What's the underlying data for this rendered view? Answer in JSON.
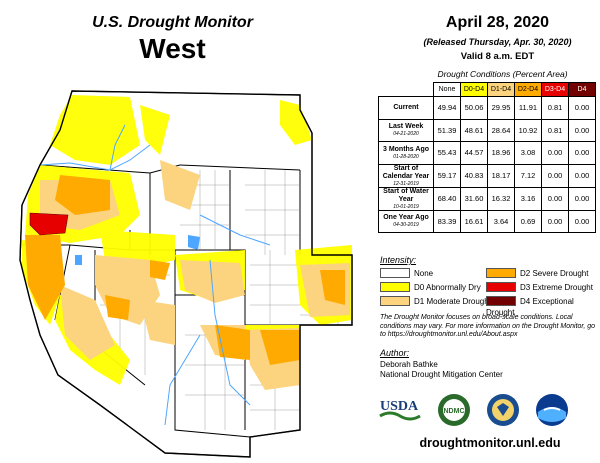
{
  "header": {
    "title": "U.S. Drought Monitor",
    "region": "West",
    "date": "April 28, 2020",
    "released": "(Released Thursday, Apr. 30, 2020)",
    "valid": "Valid 8 a.m. EDT"
  },
  "table": {
    "caption": "Drought Conditions (Percent Area)",
    "columns": [
      "None",
      "D0-D4",
      "D1-D4",
      "D2-D4",
      "D3-D4",
      "D4"
    ],
    "column_colors": [
      "#ffffff",
      "#ffff00",
      "#fcd37f",
      "#ffaa00",
      "#e60000",
      "#730000"
    ],
    "rows": [
      {
        "label": "Current",
        "date": "",
        "values": [
          "49.94",
          "50.06",
          "29.95",
          "11.91",
          "0.81",
          "0.00"
        ]
      },
      {
        "label": "Last Week",
        "date": "04-21-2020",
        "values": [
          "51.39",
          "48.61",
          "28.64",
          "10.92",
          "0.81",
          "0.00"
        ]
      },
      {
        "label": "3 Months Ago",
        "date": "01-28-2020",
        "values": [
          "55.43",
          "44.57",
          "18.96",
          "3.08",
          "0.00",
          "0.00"
        ]
      },
      {
        "label": "Start of Calendar Year",
        "date": "12-31-2019",
        "values": [
          "59.17",
          "40.83",
          "18.17",
          "7.12",
          "0.00",
          "0.00"
        ]
      },
      {
        "label": "Start of Water Year",
        "date": "10-01-2019",
        "values": [
          "68.40",
          "31.60",
          "16.32",
          "3.16",
          "0.00",
          "0.00"
        ]
      },
      {
        "label": "One Year Ago",
        "date": "04-30-2019",
        "values": [
          "83.39",
          "16.61",
          "3.64",
          "0.69",
          "0.00",
          "0.00"
        ]
      }
    ]
  },
  "legend": {
    "heading": "Intensity:",
    "items": [
      {
        "label": "None",
        "color": "#ffffff"
      },
      {
        "label": "D0 Abnormally Dry",
        "color": "#ffff00"
      },
      {
        "label": "D1 Moderate Drought",
        "color": "#fcd37f"
      },
      {
        "label": "D2 Severe Drought",
        "color": "#ffaa00"
      },
      {
        "label": "D3 Extreme Drought",
        "color": "#e60000"
      },
      {
        "label": "D4 Exceptional Drought",
        "color": "#730000"
      }
    ]
  },
  "note": "The Drought Monitor focuses on broad-scale conditions. Local conditions may vary. For more information on the Drought Monitor, go to https://droughtmonitor.unl.edu/About.aspx",
  "author": {
    "heading": "Author:",
    "name": "Deborah Bathke",
    "org": "National Drought Mitigation Center"
  },
  "logos": {
    "usda": "USDA",
    "ndmc": "NDMC",
    "doc_icon": "commerce-seal-icon",
    "noaa_icon": "noaa-logo-icon"
  },
  "url": "droughtmonitor.unl.edu"
}
